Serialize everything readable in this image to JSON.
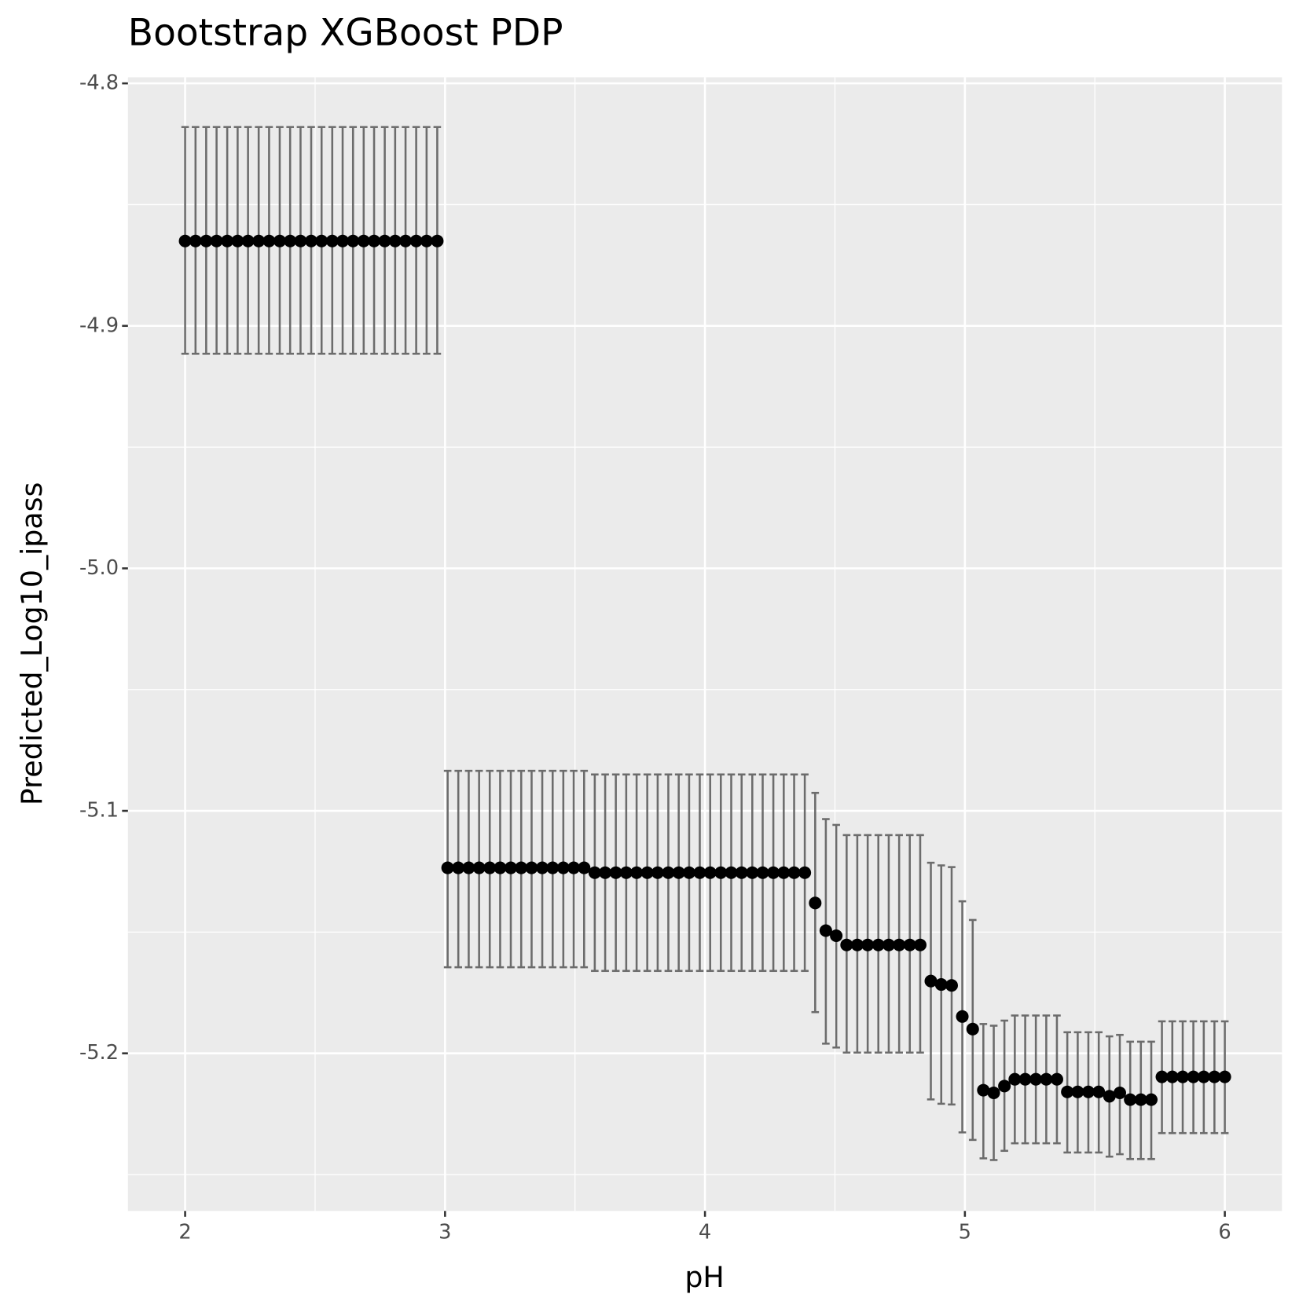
{
  "chart_data": {
    "type": "errorbar",
    "title": "Bootstrap XGBoost PDP",
    "x_label": "pH",
    "y_label": "Predicted_Log10_ipass",
    "xlim": [
      1.78,
      6.22
    ],
    "ylim": [
      -5.265,
      -4.7975
    ],
    "xticks": [
      2,
      3,
      4,
      5,
      6
    ],
    "yticks": [
      -4.8,
      -4.9,
      {
        "value": -5,
        "label": "-5.0"
      },
      -5.1,
      -5.2
    ],
    "grid": true,
    "series": [
      {
        "color": "#000000",
        "error_color": "#666666",
        "x": [
          2,
          2.04,
          2.081,
          2.121,
          2.162,
          2.202,
          2.242,
          2.283,
          2.323,
          2.364,
          2.404,
          2.444,
          2.485,
          2.525,
          2.566,
          2.606,
          2.646,
          2.687,
          2.727,
          2.768,
          2.808,
          2.848,
          2.889,
          2.929,
          2.97,
          3.01,
          3.051,
          3.091,
          3.131,
          3.172,
          3.212,
          3.253,
          3.293,
          3.333,
          3.374,
          3.414,
          3.455,
          3.495,
          3.535,
          3.576,
          3.616,
          3.657,
          3.697,
          3.737,
          3.778,
          3.818,
          3.859,
          3.899,
          3.939,
          3.98,
          4.02,
          4.061,
          4.101,
          4.141,
          4.182,
          4.222,
          4.263,
          4.303,
          4.343,
          4.384,
          4.424,
          4.465,
          4.505,
          4.545,
          4.586,
          4.626,
          4.667,
          4.707,
          4.747,
          4.788,
          4.828,
          4.869,
          4.909,
          4.949,
          4.99,
          5.03,
          5.071,
          5.111,
          5.152,
          5.192,
          5.232,
          5.273,
          5.313,
          5.354,
          5.394,
          5.434,
          5.475,
          5.515,
          5.556,
          5.596,
          5.636,
          5.677,
          5.717,
          5.758,
          5.798,
          5.838,
          5.879,
          5.919,
          5.96,
          6
        ],
        "values": [
          -4.865,
          -4.865,
          -4.865,
          -4.865,
          -4.865,
          -4.865,
          -4.865,
          -4.865,
          -4.865,
          -4.865,
          -4.865,
          -4.865,
          -4.865,
          -4.865,
          -4.865,
          -4.865,
          -4.865,
          -4.865,
          -4.865,
          -4.865,
          -4.865,
          -4.865,
          -4.865,
          -4.865,
          -4.865,
          -5.1235,
          -5.1235,
          -5.1235,
          -5.1235,
          -5.1235,
          -5.1235,
          -5.1235,
          -5.1235,
          -5.1235,
          -5.1235,
          -5.1235,
          -5.1235,
          -5.1235,
          -5.1235,
          -5.1255,
          -5.1255,
          -5.1255,
          -5.1255,
          -5.1255,
          -5.1255,
          -5.1255,
          -5.1255,
          -5.1255,
          -5.1255,
          -5.1255,
          -5.1255,
          -5.1255,
          -5.1255,
          -5.1255,
          -5.1255,
          -5.1255,
          -5.1255,
          -5.1255,
          -5.1255,
          -5.1255,
          -5.138,
          -5.1494,
          -5.1515,
          -5.1553,
          -5.1553,
          -5.1553,
          -5.1553,
          -5.1553,
          -5.1553,
          -5.1553,
          -5.1553,
          -5.1702,
          -5.1716,
          -5.172,
          -5.1848,
          -5.19,
          -5.2152,
          -5.2163,
          -5.2135,
          -5.2107,
          -5.2107,
          -5.2107,
          -5.2107,
          -5.2107,
          -5.2159,
          -5.2159,
          -5.2159,
          -5.2159,
          -5.2177,
          -5.2163,
          -5.2191,
          -5.2191,
          -5.2191,
          -5.2097,
          -5.2097,
          -5.2097,
          -5.2097,
          -5.2097,
          -5.2097,
          -5.2097
        ],
        "upper": [
          -4.818,
          -4.818,
          -4.818,
          -4.818,
          -4.818,
          -4.818,
          -4.818,
          -4.818,
          -4.818,
          -4.818,
          -4.818,
          -4.818,
          -4.818,
          -4.818,
          -4.818,
          -4.818,
          -4.818,
          -4.818,
          -4.818,
          -4.818,
          -4.818,
          -4.818,
          -4.818,
          -4.818,
          -4.818,
          -5.0835,
          -5.0835,
          -5.0835,
          -5.0835,
          -5.0835,
          -5.0835,
          -5.0835,
          -5.0835,
          -5.0835,
          -5.0835,
          -5.0835,
          -5.0835,
          -5.0835,
          -5.0835,
          -5.085,
          -5.085,
          -5.085,
          -5.085,
          -5.085,
          -5.085,
          -5.085,
          -5.085,
          -5.085,
          -5.085,
          -5.085,
          -5.085,
          -5.085,
          -5.085,
          -5.085,
          -5.085,
          -5.085,
          -5.085,
          -5.085,
          -5.085,
          -5.085,
          -5.0926,
          -5.1034,
          -5.1058,
          -5.11,
          -5.11,
          -5.11,
          -5.11,
          -5.11,
          -5.11,
          -5.11,
          -5.11,
          -5.1214,
          -5.1225,
          -5.1232,
          -5.1373,
          -5.145,
          -5.1879,
          -5.1886,
          -5.1865,
          -5.1844,
          -5.1844,
          -5.1844,
          -5.1844,
          -5.1844,
          -5.1913,
          -5.1913,
          -5.1913,
          -5.1913,
          -5.193,
          -5.1924,
          -5.1952,
          -5.1952,
          -5.1952,
          -5.1868,
          -5.1868,
          -5.1868,
          -5.1868,
          -5.1868,
          -5.1868,
          -5.1868
        ],
        "lower": [
          -4.9115,
          -4.9115,
          -4.9115,
          -4.9115,
          -4.9115,
          -4.9115,
          -4.9115,
          -4.9115,
          -4.9115,
          -4.9115,
          -4.9115,
          -4.9115,
          -4.9115,
          -4.9115,
          -4.9115,
          -4.9115,
          -4.9115,
          -4.9115,
          -4.9115,
          -4.9115,
          -4.9115,
          -4.9115,
          -4.9115,
          -4.9115,
          -4.9115,
          -5.1645,
          -5.1645,
          -5.1645,
          -5.1645,
          -5.1645,
          -5.1645,
          -5.1645,
          -5.1645,
          -5.1645,
          -5.1645,
          -5.1645,
          -5.1645,
          -5.1645,
          -5.1645,
          -5.166,
          -5.166,
          -5.166,
          -5.166,
          -5.166,
          -5.166,
          -5.166,
          -5.166,
          -5.166,
          -5.166,
          -5.166,
          -5.166,
          -5.166,
          -5.166,
          -5.166,
          -5.166,
          -5.166,
          -5.166,
          -5.166,
          -5.166,
          -5.166,
          -5.183,
          -5.196,
          -5.1976,
          -5.1997,
          -5.1997,
          -5.1997,
          -5.1997,
          -5.1997,
          -5.1997,
          -5.1997,
          -5.1997,
          -5.219,
          -5.2208,
          -5.2211,
          -5.2326,
          -5.2357,
          -5.2433,
          -5.244,
          -5.2402,
          -5.2371,
          -5.2371,
          -5.2371,
          -5.2371,
          -5.2371,
          -5.2409,
          -5.2409,
          -5.2409,
          -5.2409,
          -5.2426,
          -5.2416,
          -5.2436,
          -5.2436,
          -5.2436,
          -5.2329,
          -5.2329,
          -5.2329,
          -5.2329,
          -5.2329,
          -5.2329,
          -5.2329
        ]
      }
    ]
  }
}
